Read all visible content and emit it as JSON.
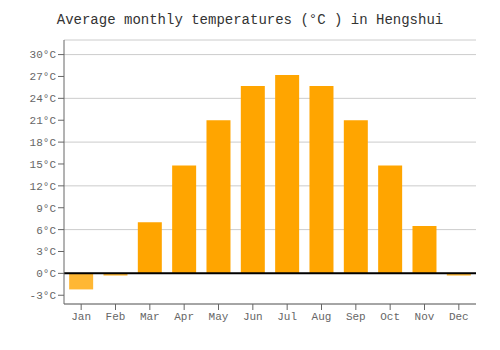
{
  "chart_data": {
    "type": "bar",
    "title": "Average monthly temperatures (°C ) in Hengshui",
    "categories": [
      "Jan",
      "Feb",
      "Mar",
      "Apr",
      "May",
      "Jun",
      "Jul",
      "Aug",
      "Sep",
      "Oct",
      "Nov",
      "Dec"
    ],
    "values": [
      -2.2,
      -0.3,
      7.0,
      14.8,
      21.0,
      25.7,
      27.2,
      25.7,
      21.0,
      14.8,
      6.5,
      -0.3
    ],
    "colors": [
      "#FFB733",
      "#FFB733",
      "#FFA500",
      "#FFA500",
      "#FFA500",
      "#FFA500",
      "#FFA500",
      "#FFA500",
      "#FFA500",
      "#FFA500",
      "#FFA500",
      "#FFB733"
    ],
    "ylim": [
      -4.2,
      32
    ],
    "yticks": [
      {
        "value": -3,
        "label": "-3°C"
      },
      {
        "value": 0,
        "label": "0°C"
      },
      {
        "value": 3,
        "label": "3°C"
      },
      {
        "value": 6,
        "label": "6°C"
      },
      {
        "value": 9,
        "label": "9°C"
      },
      {
        "value": 12,
        "label": "12°C"
      },
      {
        "value": 15,
        "label": "15°C"
      },
      {
        "value": 18,
        "label": "18°C"
      },
      {
        "value": 21,
        "label": "21°C"
      },
      {
        "value": 24,
        "label": "24°C"
      },
      {
        "value": 27,
        "label": "27°C"
      },
      {
        "value": 30,
        "label": "30°C"
      }
    ],
    "grid": true
  }
}
